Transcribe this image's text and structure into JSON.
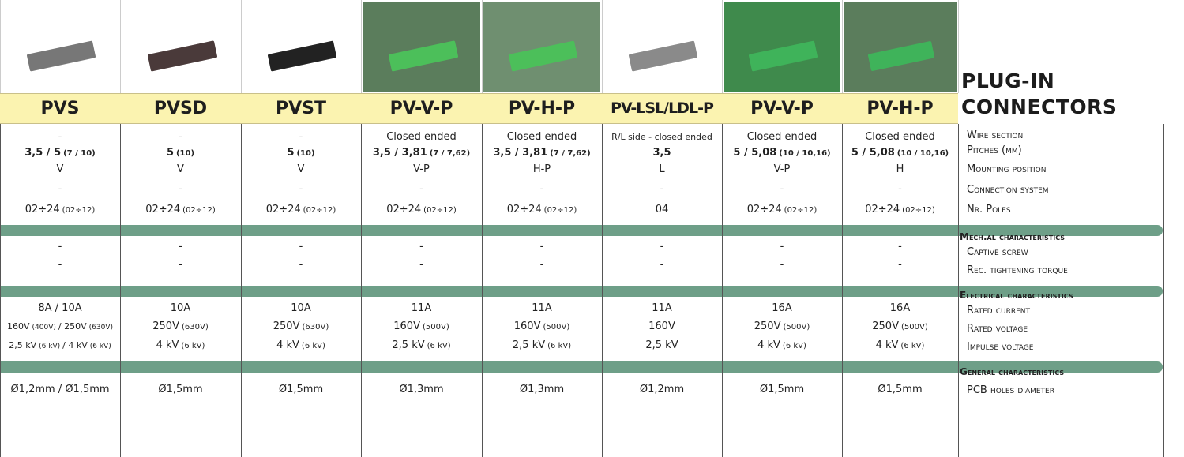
{
  "title": [
    "PLUG-IN",
    "CONNECTORS"
  ],
  "columns": [
    {
      "name": "PVS",
      "general": [
        [
          "-"
        ],
        [
          "3,5 / 5",
          "(7 / 10)"
        ],
        [
          "V"
        ],
        [
          "-"
        ],
        [
          "02÷24",
          "(02÷12)"
        ]
      ],
      "mechanical": [
        [
          "-"
        ],
        [
          "-"
        ]
      ],
      "electrical": [
        [
          "8A / 10A"
        ],
        [
          "160V",
          "(400V)",
          "/ 250V",
          "(630V)"
        ],
        [
          "2,5 kV",
          "(6 kV)",
          "/ 4 kV",
          "(6 kV)"
        ]
      ],
      "holes": [
        [
          "Ø1,2mm / Ø1,5mm"
        ]
      ]
    },
    {
      "name": "PVSD",
      "general": [
        [
          "-"
        ],
        [
          "5",
          "(10)"
        ],
        [
          "V"
        ],
        [
          "-"
        ],
        [
          "02÷24",
          "(02÷12)"
        ]
      ],
      "mechanical": [
        [
          "-"
        ],
        [
          "-"
        ]
      ],
      "electrical": [
        [
          "10A"
        ],
        [
          "250V",
          "(630V)"
        ],
        [
          "4 kV",
          "(6 kV)"
        ]
      ],
      "holes": [
        [
          "Ø1,5mm"
        ]
      ]
    },
    {
      "name": "PVST",
      "general": [
        [
          "-"
        ],
        [
          "5",
          "(10)"
        ],
        [
          "V"
        ],
        [
          "-"
        ],
        [
          "02÷24",
          "(02÷12)"
        ]
      ],
      "mechanical": [
        [
          "-"
        ],
        [
          "-"
        ]
      ],
      "electrical": [
        [
          "10A"
        ],
        [
          "250V",
          "(630V)"
        ],
        [
          "4 kV",
          "(6 kV)"
        ]
      ],
      "holes": [
        [
          "Ø1,5mm"
        ]
      ]
    },
    {
      "name": "PV-V-P",
      "general": [
        [
          "Closed ended"
        ],
        [
          "3,5 / 3,81",
          "(7 / 7,62)"
        ],
        [
          "V-P"
        ],
        [
          "-"
        ],
        [
          "02÷24",
          "(02÷12)"
        ]
      ],
      "mechanical": [
        [
          "-"
        ],
        [
          "-"
        ]
      ],
      "electrical": [
        [
          "11A"
        ],
        [
          "160V",
          "(500V)"
        ],
        [
          "2,5 kV",
          "(6 kV)"
        ]
      ],
      "holes": [
        [
          "Ø1,3mm"
        ]
      ]
    },
    {
      "name": "PV-H-P",
      "general": [
        [
          "Closed ended"
        ],
        [
          "3,5 / 3,81",
          "(7 / 7,62)"
        ],
        [
          "H-P"
        ],
        [
          "-"
        ],
        [
          "02÷24",
          "(02÷12)"
        ]
      ],
      "mechanical": [
        [
          "-"
        ],
        [
          "-"
        ]
      ],
      "electrical": [
        [
          "11A"
        ],
        [
          "160V",
          "(500V)"
        ],
        [
          "2,5 kV",
          "(6 kV)"
        ]
      ],
      "holes": [
        [
          "Ø1,3mm"
        ]
      ]
    },
    {
      "name": "PV-LSL/LDL-P",
      "general": [
        [
          "R/L side - closed ended"
        ],
        [
          "3,5"
        ],
        [
          "L"
        ],
        [
          "-"
        ],
        [
          "04"
        ]
      ],
      "mechanical": [
        [
          "-"
        ],
        [
          "-"
        ]
      ],
      "electrical": [
        [
          "11A"
        ],
        [
          "160V"
        ],
        [
          "2,5 kV"
        ]
      ],
      "holes": [
        [
          "Ø1,2mm"
        ]
      ]
    },
    {
      "name": "PV-V-P",
      "general": [
        [
          "Closed ended"
        ],
        [
          "5 / 5,08",
          "(10 / 10,16)"
        ],
        [
          "V-P"
        ],
        [
          "-"
        ],
        [
          "02÷24",
          "(02÷12)"
        ]
      ],
      "mechanical": [
        [
          "-"
        ],
        [
          "-"
        ]
      ],
      "electrical": [
        [
          "16A"
        ],
        [
          "250V",
          "(500V)"
        ],
        [
          "4 kV",
          "(6 kV)"
        ]
      ],
      "holes": [
        [
          "Ø1,5mm"
        ]
      ]
    },
    {
      "name": "PV-H-P",
      "general": [
        [
          "Closed ended"
        ],
        [
          "5 / 5,08",
          "(10 / 10,16)"
        ],
        [
          "H"
        ],
        [
          "-"
        ],
        [
          "02÷24",
          "(02÷12)"
        ]
      ],
      "mechanical": [
        [
          "-"
        ],
        [
          "-"
        ]
      ],
      "electrical": [
        [
          "16A"
        ],
        [
          "250V",
          "(500V)"
        ],
        [
          "4 kV",
          "(6 kV)"
        ]
      ],
      "holes": [
        [
          "Ø1,5mm"
        ]
      ]
    }
  ],
  "labels": {
    "general": [
      "Wire section",
      "Pitches (mm)",
      "Mounting position",
      "Connection system",
      "Nr. Poles"
    ],
    "mechanical_heading": "Mech.al characteristics",
    "mechanical": [
      "Captive screw",
      "Rec. tightening torque"
    ],
    "electrical_heading": "Electrical characteristics",
    "electrical": [
      "Rated current",
      "Rated voltage",
      "Impulse voltage"
    ],
    "holes_heading": "General characteristics",
    "holes": [
      "PCB holes diameter"
    ]
  }
}
